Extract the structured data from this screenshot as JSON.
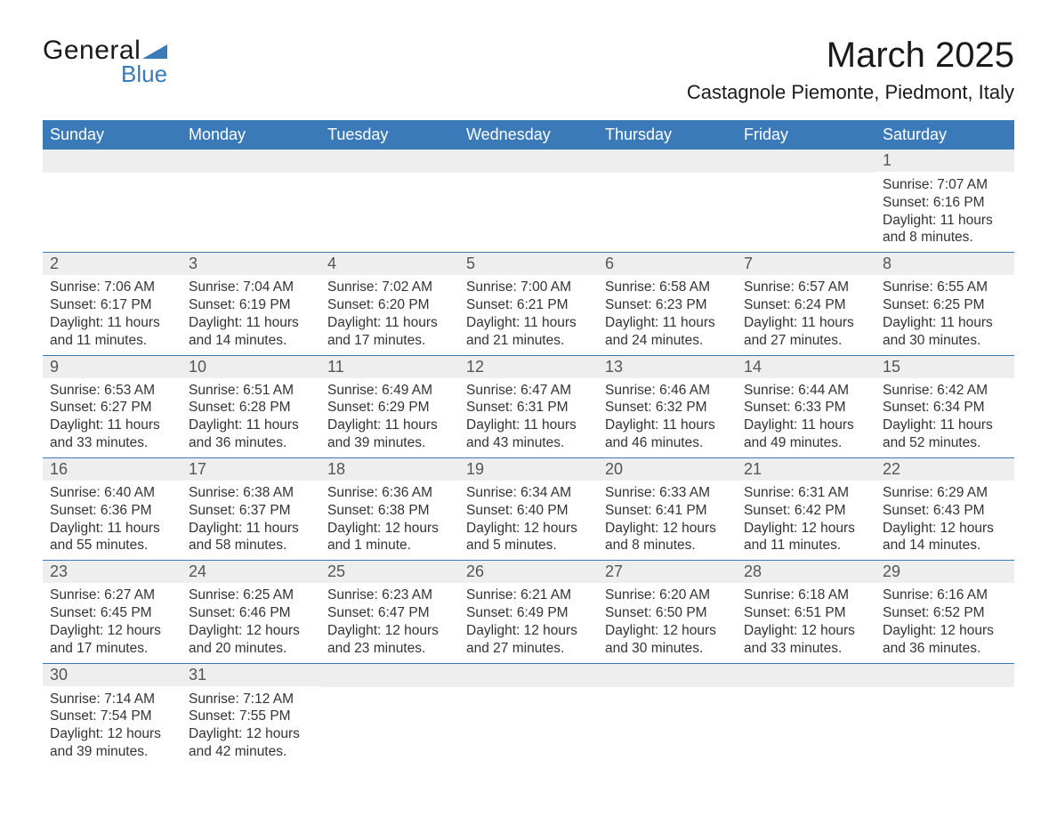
{
  "brand": {
    "word1": "General",
    "word2": "Blue",
    "accent_color": "#3a7ab8"
  },
  "title": "March 2025",
  "location": "Castagnole Piemonte, Piedmont, Italy",
  "colors": {
    "header_bg": "#3a7ab8",
    "header_text": "#ffffff",
    "daynum_bg": "#eeeeee",
    "row_divider": "#3a7ab8",
    "body_text": "#333333"
  },
  "day_headers": [
    "Sunday",
    "Monday",
    "Tuesday",
    "Wednesday",
    "Thursday",
    "Friday",
    "Saturday"
  ],
  "weeks": [
    [
      null,
      null,
      null,
      null,
      null,
      null,
      {
        "n": "1",
        "sr": "Sunrise: 7:07 AM",
        "ss": "Sunset: 6:16 PM",
        "dl": "Daylight: 11 hours and 8 minutes."
      }
    ],
    [
      {
        "n": "2",
        "sr": "Sunrise: 7:06 AM",
        "ss": "Sunset: 6:17 PM",
        "dl": "Daylight: 11 hours and 11 minutes."
      },
      {
        "n": "3",
        "sr": "Sunrise: 7:04 AM",
        "ss": "Sunset: 6:19 PM",
        "dl": "Daylight: 11 hours and 14 minutes."
      },
      {
        "n": "4",
        "sr": "Sunrise: 7:02 AM",
        "ss": "Sunset: 6:20 PM",
        "dl": "Daylight: 11 hours and 17 minutes."
      },
      {
        "n": "5",
        "sr": "Sunrise: 7:00 AM",
        "ss": "Sunset: 6:21 PM",
        "dl": "Daylight: 11 hours and 21 minutes."
      },
      {
        "n": "6",
        "sr": "Sunrise: 6:58 AM",
        "ss": "Sunset: 6:23 PM",
        "dl": "Daylight: 11 hours and 24 minutes."
      },
      {
        "n": "7",
        "sr": "Sunrise: 6:57 AM",
        "ss": "Sunset: 6:24 PM",
        "dl": "Daylight: 11 hours and 27 minutes."
      },
      {
        "n": "8",
        "sr": "Sunrise: 6:55 AM",
        "ss": "Sunset: 6:25 PM",
        "dl": "Daylight: 11 hours and 30 minutes."
      }
    ],
    [
      {
        "n": "9",
        "sr": "Sunrise: 6:53 AM",
        "ss": "Sunset: 6:27 PM",
        "dl": "Daylight: 11 hours and 33 minutes."
      },
      {
        "n": "10",
        "sr": "Sunrise: 6:51 AM",
        "ss": "Sunset: 6:28 PM",
        "dl": "Daylight: 11 hours and 36 minutes."
      },
      {
        "n": "11",
        "sr": "Sunrise: 6:49 AM",
        "ss": "Sunset: 6:29 PM",
        "dl": "Daylight: 11 hours and 39 minutes."
      },
      {
        "n": "12",
        "sr": "Sunrise: 6:47 AM",
        "ss": "Sunset: 6:31 PM",
        "dl": "Daylight: 11 hours and 43 minutes."
      },
      {
        "n": "13",
        "sr": "Sunrise: 6:46 AM",
        "ss": "Sunset: 6:32 PM",
        "dl": "Daylight: 11 hours and 46 minutes."
      },
      {
        "n": "14",
        "sr": "Sunrise: 6:44 AM",
        "ss": "Sunset: 6:33 PM",
        "dl": "Daylight: 11 hours and 49 minutes."
      },
      {
        "n": "15",
        "sr": "Sunrise: 6:42 AM",
        "ss": "Sunset: 6:34 PM",
        "dl": "Daylight: 11 hours and 52 minutes."
      }
    ],
    [
      {
        "n": "16",
        "sr": "Sunrise: 6:40 AM",
        "ss": "Sunset: 6:36 PM",
        "dl": "Daylight: 11 hours and 55 minutes."
      },
      {
        "n": "17",
        "sr": "Sunrise: 6:38 AM",
        "ss": "Sunset: 6:37 PM",
        "dl": "Daylight: 11 hours and 58 minutes."
      },
      {
        "n": "18",
        "sr": "Sunrise: 6:36 AM",
        "ss": "Sunset: 6:38 PM",
        "dl": "Daylight: 12 hours and 1 minute."
      },
      {
        "n": "19",
        "sr": "Sunrise: 6:34 AM",
        "ss": "Sunset: 6:40 PM",
        "dl": "Daylight: 12 hours and 5 minutes."
      },
      {
        "n": "20",
        "sr": "Sunrise: 6:33 AM",
        "ss": "Sunset: 6:41 PM",
        "dl": "Daylight: 12 hours and 8 minutes."
      },
      {
        "n": "21",
        "sr": "Sunrise: 6:31 AM",
        "ss": "Sunset: 6:42 PM",
        "dl": "Daylight: 12 hours and 11 minutes."
      },
      {
        "n": "22",
        "sr": "Sunrise: 6:29 AM",
        "ss": "Sunset: 6:43 PM",
        "dl": "Daylight: 12 hours and 14 minutes."
      }
    ],
    [
      {
        "n": "23",
        "sr": "Sunrise: 6:27 AM",
        "ss": "Sunset: 6:45 PM",
        "dl": "Daylight: 12 hours and 17 minutes."
      },
      {
        "n": "24",
        "sr": "Sunrise: 6:25 AM",
        "ss": "Sunset: 6:46 PM",
        "dl": "Daylight: 12 hours and 20 minutes."
      },
      {
        "n": "25",
        "sr": "Sunrise: 6:23 AM",
        "ss": "Sunset: 6:47 PM",
        "dl": "Daylight: 12 hours and 23 minutes."
      },
      {
        "n": "26",
        "sr": "Sunrise: 6:21 AM",
        "ss": "Sunset: 6:49 PM",
        "dl": "Daylight: 12 hours and 27 minutes."
      },
      {
        "n": "27",
        "sr": "Sunrise: 6:20 AM",
        "ss": "Sunset: 6:50 PM",
        "dl": "Daylight: 12 hours and 30 minutes."
      },
      {
        "n": "28",
        "sr": "Sunrise: 6:18 AM",
        "ss": "Sunset: 6:51 PM",
        "dl": "Daylight: 12 hours and 33 minutes."
      },
      {
        "n": "29",
        "sr": "Sunrise: 6:16 AM",
        "ss": "Sunset: 6:52 PM",
        "dl": "Daylight: 12 hours and 36 minutes."
      }
    ],
    [
      {
        "n": "30",
        "sr": "Sunrise: 7:14 AM",
        "ss": "Sunset: 7:54 PM",
        "dl": "Daylight: 12 hours and 39 minutes."
      },
      {
        "n": "31",
        "sr": "Sunrise: 7:12 AM",
        "ss": "Sunset: 7:55 PM",
        "dl": "Daylight: 12 hours and 42 minutes."
      },
      null,
      null,
      null,
      null,
      null
    ]
  ]
}
